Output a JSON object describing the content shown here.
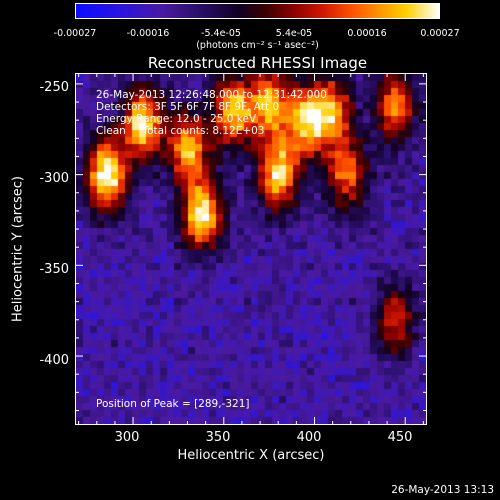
{
  "colorbar": {
    "ticks": [
      "-0.00027",
      "-0.00016",
      "-5.4e-05",
      "5.4e-05",
      "0.00016",
      "0.00027"
    ],
    "unit": "(photons cm⁻² s⁻¹ asec⁻²)",
    "vmin": -0.00027,
    "vmax": 0.00027
  },
  "chart_data": {
    "type": "heatmap",
    "title": "Reconstructed RHESSI Image",
    "xlabel": "Heliocentric X (arcsec)",
    "ylabel": "Heliocentric Y (arcsec)",
    "xlim": [
      268,
      462
    ],
    "ylim": [
      -438,
      -244
    ],
    "xticks": [
      300,
      350,
      400,
      450
    ],
    "yticks": [
      -250,
      -300,
      -350,
      -400
    ],
    "annotations": [
      "26-May-2013 12:26:48.000 to 12:31:42.000",
      "Detectors: 3F 5F 6F 7F 8F 9F, Att 0",
      "Energy Range: 12.0 - 25.0 keV",
      "Clean     Total counts: 8.12E+03"
    ],
    "peak_label": "Position of Peak = [289,-321]",
    "peak_position": [
      289,
      -321
    ],
    "bright_regions": [
      {
        "x": 285,
        "y": -300,
        "level": 1.0
      },
      {
        "x": 305,
        "y": -272,
        "level": 0.95
      },
      {
        "x": 330,
        "y": -285,
        "level": 0.8
      },
      {
        "x": 338,
        "y": -322,
        "level": 0.95
      },
      {
        "x": 355,
        "y": -265,
        "level": 0.85
      },
      {
        "x": 375,
        "y": -260,
        "level": 0.8
      },
      {
        "x": 380,
        "y": -300,
        "level": 0.85
      },
      {
        "x": 395,
        "y": -270,
        "level": 0.8
      },
      {
        "x": 410,
        "y": -265,
        "level": 0.75
      },
      {
        "x": 418,
        "y": -300,
        "level": 0.65
      },
      {
        "x": 445,
        "y": -262,
        "level": 0.7
      },
      {
        "x": 445,
        "y": -380,
        "level": 0.6
      }
    ]
  },
  "footer": "26-May-2013 13:13"
}
